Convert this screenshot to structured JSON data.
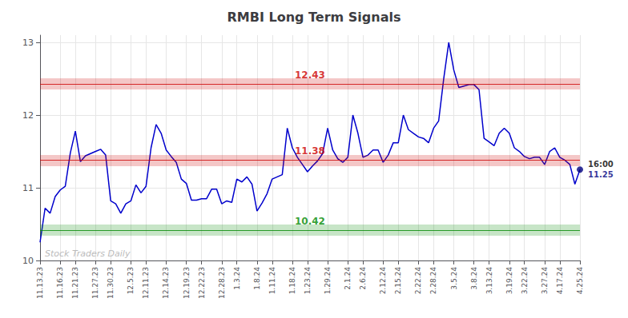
{
  "chart_data": {
    "type": "line",
    "title": "RMBI Long Term Signals",
    "categories": [
      "11.13.23",
      null,
      null,
      null,
      "11.16.23",
      null,
      null,
      "11.21.23",
      null,
      null,
      null,
      "11.27.23",
      null,
      null,
      "11.30.23",
      null,
      null,
      null,
      "12.5.23",
      null,
      null,
      "12.11.23",
      null,
      null,
      null,
      "12.14.23",
      null,
      null,
      null,
      "12.19.23",
      null,
      null,
      "12.22.23",
      null,
      null,
      null,
      "12.28.23",
      null,
      null,
      "1.3.24",
      null,
      null,
      null,
      "1.8.24",
      null,
      null,
      "1.11.24",
      null,
      null,
      null,
      "1.18.24",
      null,
      null,
      "1.23.24",
      null,
      null,
      null,
      "1.29.24",
      null,
      null,
      null,
      "2.1.24",
      null,
      null,
      "2.6.24",
      null,
      null,
      null,
      "2.12.24",
      null,
      null,
      "2.15.24",
      null,
      null,
      null,
      "2.22.24",
      null,
      null,
      "2.28.24",
      null,
      null,
      null,
      "3.5.24",
      null,
      null,
      null,
      "3.8.24",
      null,
      null,
      "3.13.24",
      null,
      null,
      null,
      "3.19.24",
      null,
      null,
      "3.22.24",
      null,
      null,
      null,
      "3.27.24",
      null,
      null,
      "4.17.24",
      null,
      null,
      null,
      "4.25.24"
    ],
    "values": [
      10.25,
      10.72,
      10.65,
      10.88,
      10.97,
      11.02,
      11.48,
      11.78,
      11.36,
      11.44,
      11.47,
      11.5,
      11.53,
      11.45,
      10.82,
      10.78,
      10.65,
      10.78,
      10.82,
      11.04,
      10.93,
      11.02,
      11.55,
      11.87,
      11.75,
      11.52,
      11.43,
      11.35,
      11.12,
      11.06,
      10.83,
      10.83,
      10.85,
      10.85,
      10.98,
      10.98,
      10.78,
      10.82,
      10.8,
      11.12,
      11.08,
      11.15,
      11.05,
      10.68,
      10.79,
      10.92,
      11.12,
      11.15,
      11.18,
      11.82,
      11.55,
      11.42,
      11.32,
      11.22,
      11.3,
      11.37,
      11.47,
      11.82,
      11.52,
      11.4,
      11.35,
      11.42,
      12.0,
      11.75,
      11.42,
      11.45,
      11.52,
      11.52,
      11.35,
      11.45,
      11.62,
      11.62,
      12.0,
      11.8,
      11.75,
      11.7,
      11.68,
      11.62,
      11.82,
      11.92,
      12.5,
      13.0,
      12.62,
      12.38,
      12.4,
      12.42,
      12.42,
      12.35,
      11.68,
      11.63,
      11.58,
      11.75,
      11.82,
      11.75,
      11.55,
      11.5,
      11.43,
      11.4,
      11.42,
      11.42,
      11.32,
      11.5,
      11.55,
      11.42,
      11.38,
      11.32,
      11.05,
      11.25
    ],
    "color": "#0000cc",
    "ylim": [
      10.0,
      13.1
    ],
    "yticks": [
      10,
      11,
      12,
      13
    ],
    "grid": true,
    "reference_lines": [
      {
        "value": 12.43,
        "label": "12.43",
        "color": "#cc0000"
      },
      {
        "value": 11.38,
        "label": "11.38",
        "color": "#cc0000"
      },
      {
        "value": 10.42,
        "label": "10.42",
        "color": "#008800"
      }
    ],
    "last_point": {
      "label": "16:00",
      "value": 11.25,
      "color": "#000080"
    },
    "watermark": "Stock Traders Daily"
  }
}
